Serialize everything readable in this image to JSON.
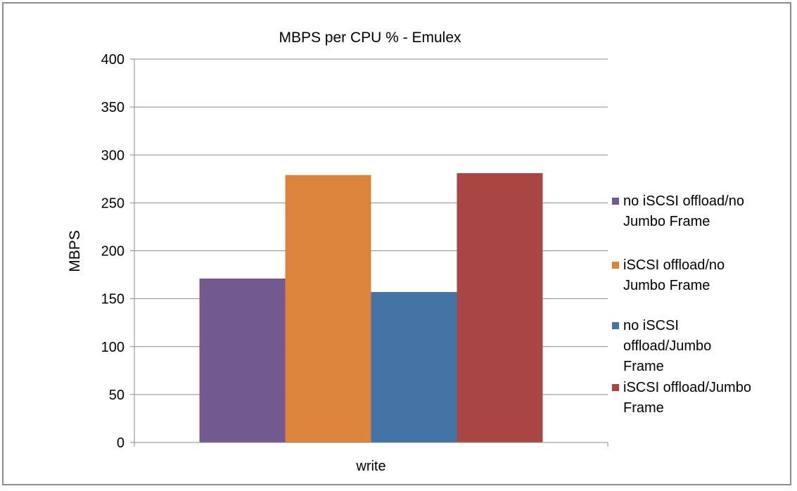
{
  "chart_data": {
    "type": "bar",
    "title": "MBPS per CPU % - Emulex",
    "ylabel": "MBPS",
    "xlabel": "",
    "categories": [
      "write"
    ],
    "ylim": [
      0,
      400
    ],
    "yticks": [
      0,
      50,
      100,
      150,
      200,
      250,
      300,
      350,
      400
    ],
    "grid": true,
    "legend_position": "right",
    "series": [
      {
        "name": "no iSCSI offload/no Jumbo Frame",
        "legend_lines": [
          "no iSCSI offload/no",
          "Jumbo Frame"
        ],
        "values": [
          171
        ],
        "color": "#72598f"
      },
      {
        "name": "iSCSI offload/no Jumbo Frame",
        "legend_lines": [
          "iSCSI offload/no",
          "Jumbo Frame"
        ],
        "values": [
          279
        ],
        "color": "#dc843c"
      },
      {
        "name": "no iSCSI offload/Jumbo Frame",
        "legend_lines": [
          "no iSCSI",
          "offload/Jumbo",
          "Frame"
        ],
        "values": [
          157
        ],
        "color": "#4473a6"
      },
      {
        "name": "iSCSI offload/Jumbo Frame",
        "legend_lines": [
          "iSCSI offload/Jumbo",
          "Frame"
        ],
        "values": [
          281
        ],
        "color": "#a84644"
      }
    ]
  }
}
